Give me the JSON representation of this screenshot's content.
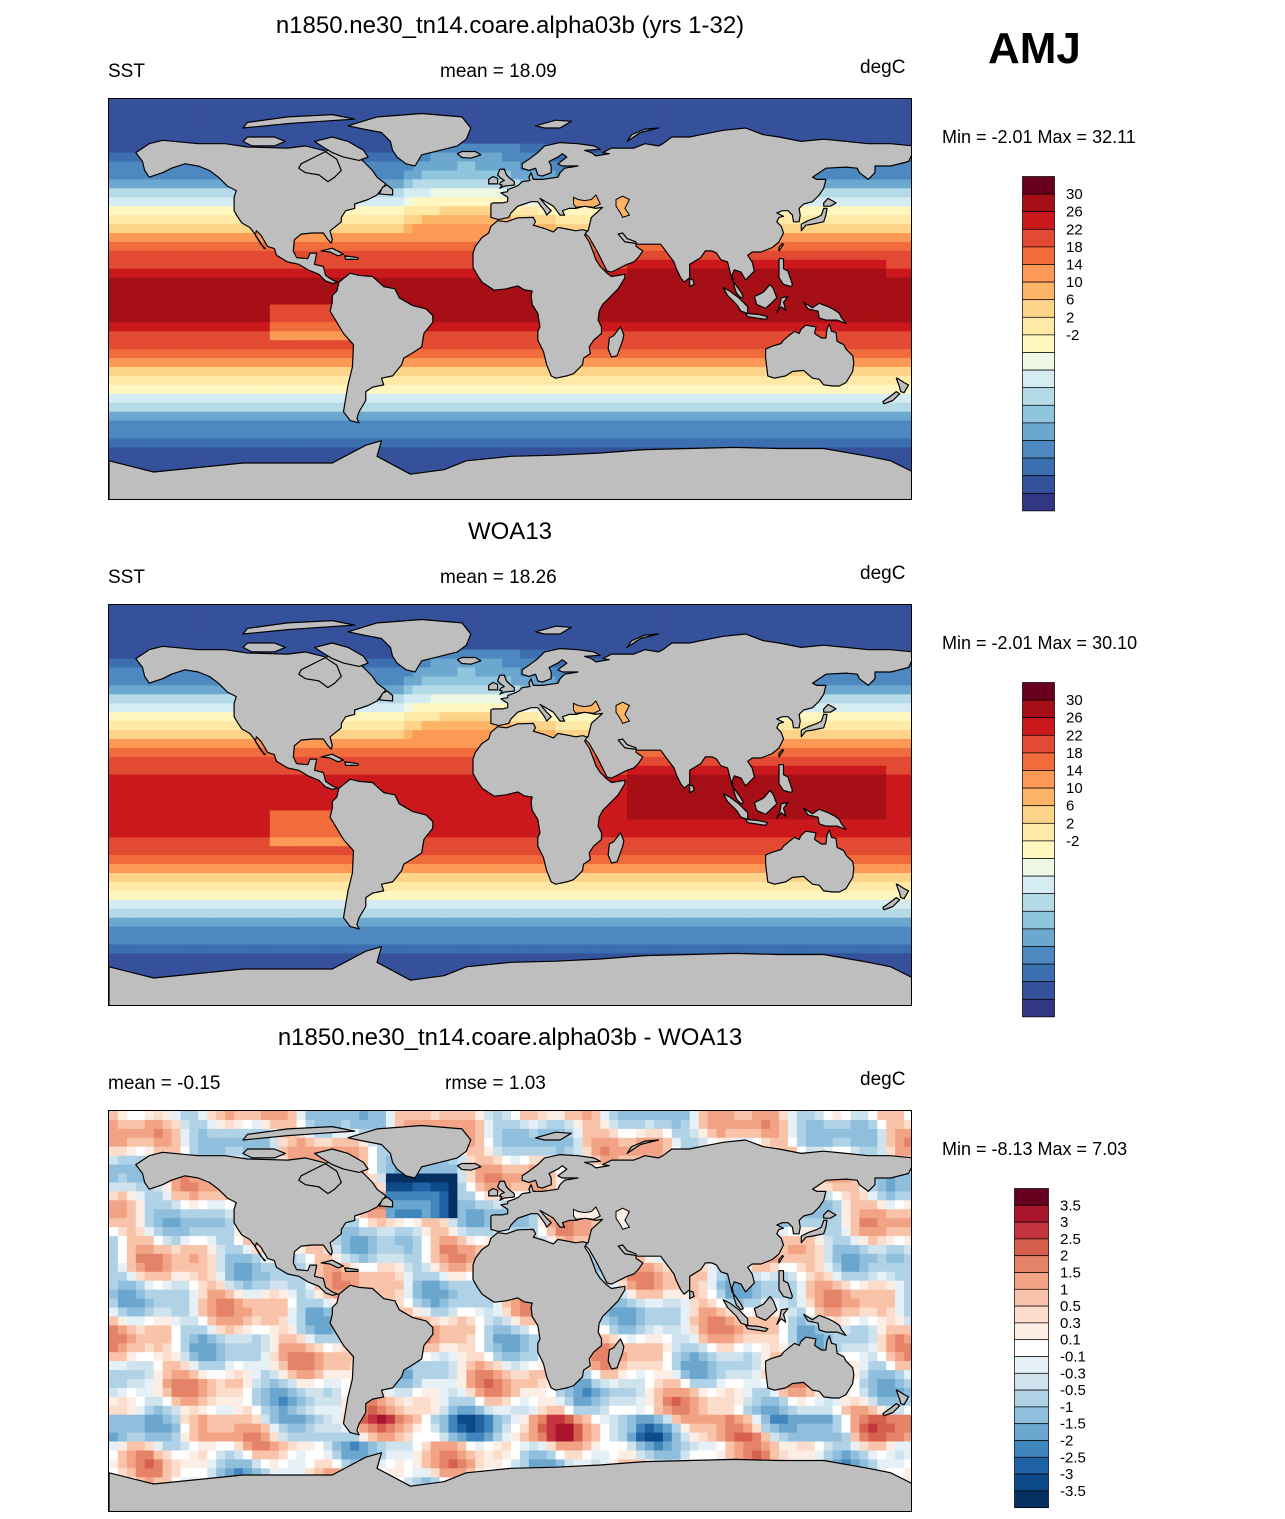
{
  "season": "AMJ",
  "units": "degC",
  "panels": [
    {
      "id": "model",
      "title": "n1850.ne30_tn14.coare.alpha03b (yrs 1-32)",
      "left_label": "SST",
      "center_label": "mean =  18.09",
      "right_label": "degC",
      "minmax": "Min =  -2.01 Max =  32.11",
      "field": "sst"
    },
    {
      "id": "obs",
      "title": "WOA13",
      "left_label": "SST",
      "center_label": "mean =  18.26",
      "right_label": "degC",
      "minmax": "Min =  -2.01 Max =  30.10",
      "field": "sst"
    },
    {
      "id": "diff",
      "title": "n1850.ne30_tn14.coare.alpha03b - WOA13",
      "left_label": "mean =  -0.15",
      "center_label": "rmse =   1.03",
      "right_label": "degC",
      "minmax": "Min =  -8.13 Max =   7.03",
      "field": "diff"
    }
  ],
  "colorbars": {
    "sst": {
      "labels": [
        "30",
        "26",
        "22",
        "18",
        "14",
        "10",
        "6",
        "2",
        "-2"
      ],
      "colors": [
        "#67001f",
        "#a50f15",
        "#cb181d",
        "#e34a33",
        "#f16c3b",
        "#fc9a55",
        "#fdb466",
        "#fdd38a",
        "#feeaa6",
        "#fff7bf",
        "#eef8e4",
        "#d5ecf2",
        "#b5dbe9",
        "#90c5de",
        "#6ca7cf",
        "#4d89c0",
        "#3b6fb0",
        "#36519c",
        "#313685"
      ]
    },
    "diff": {
      "labels": [
        "3.5",
        "3",
        "2.5",
        "2",
        "1.5",
        "1",
        "0.5",
        "0.3",
        "0.1",
        "-0.1",
        "-0.3",
        "-0.5",
        "-1",
        "-1.5",
        "-2",
        "-2.5",
        "-3",
        "-3.5"
      ],
      "colors": [
        "#67001f",
        "#a7142c",
        "#c4343f",
        "#d6604d",
        "#e58368",
        "#f2a385",
        "#f8c3a8",
        "#fcdccb",
        "#fdeee5",
        "#ffffff",
        "#e6f0f7",
        "#cfe3ef",
        "#b0d2e7",
        "#8fbfdc",
        "#6aa6cd",
        "#3f86bc",
        "#2063a5",
        "#0d4a8a",
        "#053061"
      ]
    }
  }
}
